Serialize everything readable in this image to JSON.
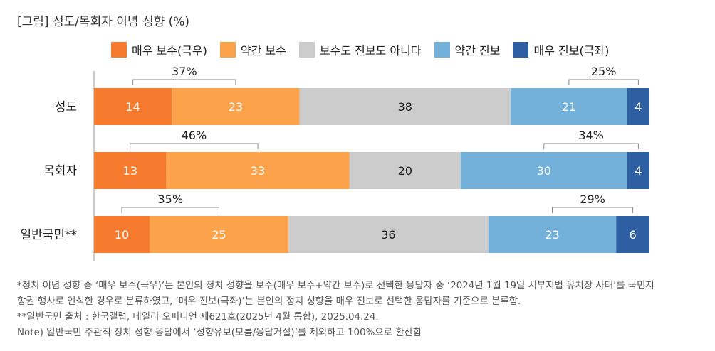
{
  "title": "[그림] 성도/목회자 이념 성향 (%)",
  "colors": {
    "very_conservative": "#f77b2e",
    "somewhat_conservative": "#fba24a",
    "neither": "#cccccc",
    "somewhat_progressive": "#73b1db",
    "very_progressive": "#2e5fa3",
    "axis": "#999999",
    "bracket": "#888888"
  },
  "chart_data": {
    "type": "bar",
    "orientation": "horizontal",
    "stacked": true,
    "title": "[그림] 성도/목회자 이념 성향 (%)",
    "xlim": [
      0,
      100
    ],
    "categories": [
      "성도",
      "목회자",
      "일반국민**"
    ],
    "series": [
      {
        "name": "매우 보수(극우)",
        "color_key": "very_conservative",
        "label_color": "#ffffff",
        "values": [
          14,
          13,
          10
        ]
      },
      {
        "name": "약간 보수",
        "color_key": "somewhat_conservative",
        "label_color": "#ffffff",
        "values": [
          23,
          33,
          25
        ]
      },
      {
        "name": "보수도 진보도 아니다",
        "color_key": "neither",
        "label_color": "#222222",
        "values": [
          38,
          20,
          36
        ]
      },
      {
        "name": "약간 진보",
        "color_key": "somewhat_progressive",
        "label_color": "#ffffff",
        "values": [
          21,
          30,
          23
        ]
      },
      {
        "name": "매우 진보(극좌)",
        "color_key": "very_progressive",
        "label_color": "#ffffff",
        "values": [
          4,
          4,
          6
        ]
      }
    ],
    "conservative_totals": [
      "37%",
      "46%",
      "35%"
    ],
    "progressive_totals": [
      "25%",
      "34%",
      "29%"
    ],
    "legend_position": "top"
  },
  "notes": [
    "*정치 이념 성향 중 ‘매우 보수(극우)’는 본인의 정치 성향을 보수(매우 보수+약간 보수)로 선택한 응답자 중 ‘2024년 1월 19일 서부지법 유치장 사태’를 국민저",
    "항권 행사로 인식한 경우로 분류하였고, ‘매우 진보(극좌)’는 본인의 정치 성향을 매우 진보로 선택한 응답자를 기준으로 분류함.",
    "**일반국민 출처 : 한국갤럽, 데일리 오피니언 제621호(2025년 4월 통합), 2025.04.24.",
    "Note) 일반국민 주관적 정치 성향 응답에서 ‘성향유보(모름/응답거절)’를 제외하고 100%으로 환산함"
  ]
}
